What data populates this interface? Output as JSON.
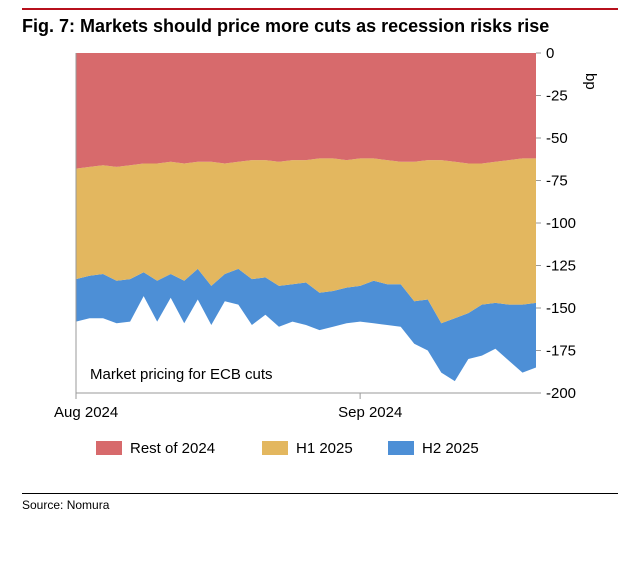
{
  "figure": {
    "title": "Fig. 7: Markets should price more cuts as recession risks rise",
    "source_label": "Source: Nomura",
    "accent_color": "#b7101c",
    "annotation": "Market pricing for ECB cuts",
    "chart": {
      "type": "area",
      "background_color": "#ffffff",
      "plot_border_color": "#9a9a9a",
      "plot_border_width": 1,
      "axis_unit": "bp",
      "y": {
        "min": -200,
        "max": 0,
        "tick_step": 25,
        "ticks": [
          0,
          -25,
          -50,
          -75,
          -100,
          -125,
          -150,
          -175,
          -200
        ],
        "side": "right",
        "label_fontsize": 15
      },
      "x": {
        "n": 35,
        "tick_labels": [
          {
            "i": 0,
            "label": "Aug 2024"
          },
          {
            "i": 21,
            "label": "Sep 2024"
          }
        ],
        "label_fontsize": 15
      },
      "series": [
        {
          "name": "Rest of 2024",
          "key": "rest_2024",
          "color": "#d76a6c",
          "cum": [
            -68,
            -67,
            -66,
            -67,
            -66,
            -65,
            -65,
            -64,
            -65,
            -64,
            -64,
            -65,
            -64,
            -63,
            -63,
            -64,
            -63,
            -63,
            -62,
            -62,
            -63,
            -62,
            -62,
            -63,
            -64,
            -64,
            -63,
            -63,
            -64,
            -65,
            -65,
            -64,
            -63,
            -62,
            -62
          ]
        },
        {
          "name": "H1 2025",
          "key": "h1_2025",
          "color": "#e3b75f",
          "cum": [
            -133,
            -131,
            -130,
            -134,
            -133,
            -129,
            -134,
            -130,
            -134,
            -127,
            -137,
            -130,
            -127,
            -133,
            -132,
            -137,
            -136,
            -135,
            -141,
            -140,
            -138,
            -137,
            -134,
            -136,
            -136,
            -146,
            -145,
            -159,
            -156,
            -153,
            -148,
            -147,
            -148,
            -148,
            -147
          ]
        },
        {
          "name": "H2 2025",
          "key": "h2_2025",
          "color": "#4d8fd6",
          "cum": [
            -158,
            -156,
            -156,
            -159,
            -158,
            -143,
            -158,
            -144,
            -159,
            -145,
            -160,
            -146,
            -148,
            -160,
            -154,
            -161,
            -158,
            -160,
            -163,
            -161,
            -159,
            -158,
            -159,
            -160,
            -161,
            -171,
            -175,
            -188,
            -193,
            -180,
            -178,
            -174,
            -181,
            -188,
            -185
          ]
        }
      ],
      "legend": {
        "position": "bottom",
        "items": [
          {
            "label": "Rest of 2024",
            "color": "#d76a6c"
          },
          {
            "label": "H1 2025",
            "color": "#e3b75f"
          },
          {
            "label": "H2 2025",
            "color": "#4d8fd6"
          }
        ]
      }
    }
  }
}
